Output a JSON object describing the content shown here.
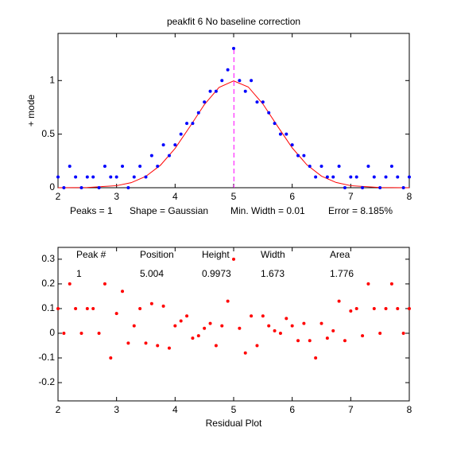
{
  "chart_data": [
    {
      "type": "scatter",
      "title": "peakfit 6   No baseline correction",
      "ylabel": "+ mode",
      "xlim": [
        2,
        8
      ],
      "xticks": [
        2,
        3,
        4,
        5,
        6,
        7,
        8
      ],
      "ylim": [
        0,
        1.44
      ],
      "yticks": [
        0,
        0.5,
        1
      ],
      "color": "#0000ff",
      "x": [
        2,
        2.1,
        2.2,
        2.3,
        2.4,
        2.5,
        2.6,
        2.7,
        2.8,
        2.9,
        3,
        3.1,
        3.2,
        3.3,
        3.4,
        3.5,
        3.6,
        3.7,
        3.8,
        3.9,
        4,
        4.1,
        4.2,
        4.3,
        4.4,
        4.5,
        4.6,
        4.7,
        4.8,
        4.9,
        5,
        5.1,
        5.2,
        5.3,
        5.4,
        5.5,
        5.6,
        5.7,
        5.8,
        5.9,
        6,
        6.1,
        6.2,
        6.3,
        6.4,
        6.5,
        6.6,
        6.7,
        6.8,
        6.9,
        7,
        7.1,
        7.2,
        7.3,
        7.4,
        7.5,
        7.6,
        7.7,
        7.8,
        7.9,
        8
      ],
      "values": [
        0.1,
        0,
        0.2,
        0.1,
        0,
        0.1,
        0.1,
        0,
        0.2,
        0.1,
        0.1,
        0.2,
        0,
        0.1,
        0.2,
        0.1,
        0.3,
        0.2,
        0.4,
        0.3,
        0.4,
        0.5,
        0.6,
        0.6,
        0.7,
        0.8,
        0.9,
        0.9,
        1.0,
        1.1,
        1.3,
        1.0,
        0.9,
        1.0,
        0.8,
        0.8,
        0.7,
        0.6,
        0.5,
        0.5,
        0.4,
        0.3,
        0.3,
        0.2,
        0.1,
        0.2,
        0.1,
        0.1,
        0.2,
        0,
        0.1,
        0.1,
        0,
        0.2,
        0.1,
        0,
        0.1,
        0.2,
        0.1,
        0,
        0.1
      ],
      "fit": {
        "color": "#ff0000",
        "x": [
          2,
          2.5,
          3,
          3.25,
          3.5,
          3.75,
          4,
          4.25,
          4.5,
          4.75,
          5,
          5.25,
          5.5,
          5.75,
          6,
          6.25,
          6.5,
          6.75,
          7,
          7.5,
          8
        ],
        "values": [
          0,
          0.002,
          0.019,
          0.047,
          0.106,
          0.21,
          0.367,
          0.568,
          0.776,
          0.936,
          0.997,
          0.94,
          0.781,
          0.574,
          0.372,
          0.214,
          0.108,
          0.049,
          0.019,
          0.002,
          0
        ]
      },
      "peak_line": {
        "x": 5.004,
        "color": "#ff00ff"
      },
      "annotations": [
        "Peaks = 1",
        "Shape = Gaussian",
        "Min. Width = 0.01",
        "Error = 8.185%"
      ]
    },
    {
      "type": "scatter",
      "xlabel": "Residual Plot",
      "xlim": [
        2,
        8
      ],
      "xticks": [
        2,
        3,
        4,
        5,
        6,
        7,
        8
      ],
      "ylim": [
        -0.274,
        0.348
      ],
      "yticks": [
        -0.2,
        -0.1,
        0,
        0.1,
        0.2,
        0.3
      ],
      "color": "#ff0000",
      "x": [
        2,
        2.1,
        2.2,
        2.3,
        2.4,
        2.5,
        2.6,
        2.7,
        2.8,
        2.9,
        3,
        3.1,
        3.2,
        3.3,
        3.4,
        3.5,
        3.6,
        3.7,
        3.8,
        3.9,
        4,
        4.1,
        4.2,
        4.3,
        4.4,
        4.5,
        4.6,
        4.7,
        4.8,
        4.9,
        5,
        5.1,
        5.2,
        5.3,
        5.4,
        5.5,
        5.6,
        5.7,
        5.8,
        5.9,
        6,
        6.1,
        6.2,
        6.3,
        6.4,
        6.5,
        6.6,
        6.7,
        6.8,
        6.9,
        7,
        7.1,
        7.2,
        7.3,
        7.4,
        7.5,
        7.6,
        7.7,
        7.8,
        7.9,
        8
      ],
      "values": [
        0.1,
        0,
        0.2,
        0.1,
        0,
        0.1,
        0.1,
        0,
        0.2,
        -0.1,
        0.08,
        0.17,
        -0.04,
        0.03,
        0.1,
        -0.04,
        0.12,
        -0.05,
        0.11,
        -0.06,
        0.03,
        0.05,
        0.07,
        -0.02,
        -0.01,
        0.02,
        0.04,
        -0.05,
        0.03,
        0.13,
        0.3,
        0.02,
        -0.08,
        0.07,
        -0.05,
        0.07,
        0.03,
        0.01,
        0,
        0.06,
        0.03,
        -0.03,
        0.04,
        -0.03,
        -0.1,
        0.04,
        -0.02,
        0.01,
        0.13,
        -0.03,
        0.09,
        0.1,
        -0.01,
        0.2,
        0.1,
        0,
        0.1,
        0.2,
        0.1,
        0,
        0.1
      ],
      "table": {
        "headers": [
          "Peak #",
          "Position",
          "Height",
          "Width",
          "Area"
        ],
        "rows": [
          [
            1,
            5.004,
            0.9973,
            1.673,
            1.776
          ]
        ]
      }
    }
  ]
}
